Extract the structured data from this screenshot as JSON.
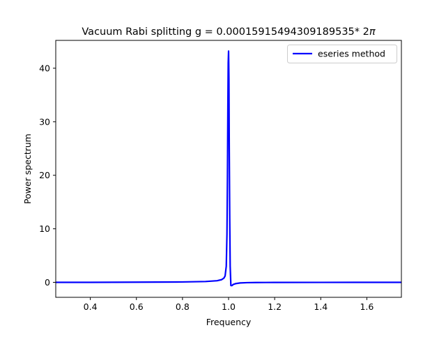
{
  "chart_data": {
    "type": "line",
    "title_text": "Vacuum Rabi splitting g = 0.00015915494309189535* 2",
    "title_symbol": "π",
    "xlabel": "Frequency",
    "ylabel": "Power spectrum",
    "xlim": [
      0.25,
      1.75
    ],
    "ylim": [
      -2.8,
      45.2
    ],
    "xticks": [
      0.4,
      0.6,
      0.8,
      1.0,
      1.2,
      1.4,
      1.6
    ],
    "xtick_labels": [
      "0.4",
      "0.6",
      "0.8",
      "1.0",
      "1.2",
      "1.4",
      "1.6"
    ],
    "yticks": [
      0,
      10,
      20,
      30,
      40
    ],
    "ytick_labels": [
      "0",
      "10",
      "20",
      "30",
      "40"
    ],
    "grid": false,
    "legend_position": "top-right",
    "series": [
      {
        "name": "eseries method",
        "color": "#0000ff",
        "x": [
          0.25,
          0.4,
          0.6,
          0.8,
          0.9,
          0.95,
          0.97,
          0.98,
          0.985,
          0.99,
          0.993,
          0.995,
          0.997,
          0.9985,
          1.0,
          1.0015,
          1.003,
          1.005,
          1.007,
          1.01,
          1.015,
          1.02,
          1.03,
          1.05,
          1.08,
          1.12,
          1.2,
          1.4,
          1.6,
          1.75
        ],
        "y": [
          0.0,
          0.0,
          0.03,
          0.07,
          0.15,
          0.3,
          0.5,
          0.8,
          1.2,
          3.0,
          9.0,
          19.0,
          33.0,
          41.0,
          43.2,
          38.0,
          25.0,
          12.0,
          3.0,
          -0.6,
          -0.6,
          -0.4,
          -0.25,
          -0.12,
          -0.06,
          -0.04,
          -0.02,
          -0.01,
          0.0,
          0.0
        ]
      }
    ]
  }
}
